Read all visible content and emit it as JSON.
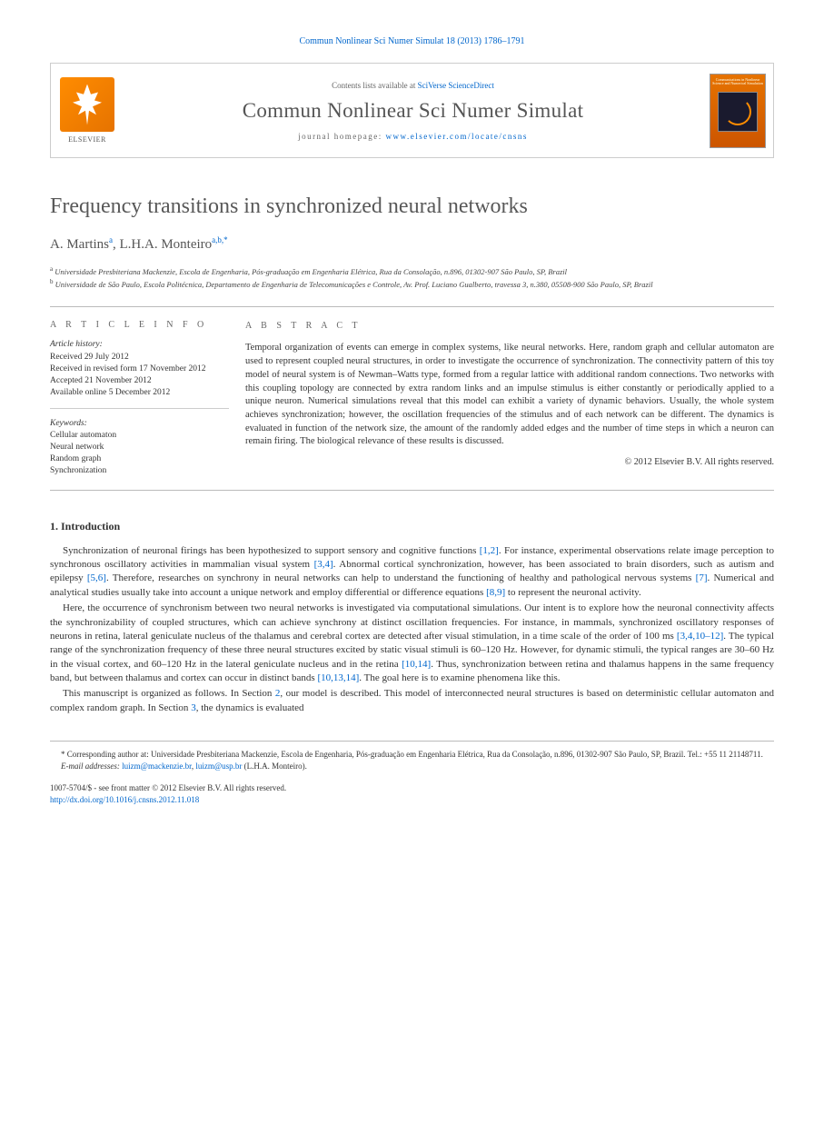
{
  "header": {
    "citation": "Commun Nonlinear Sci Numer Simulat 18 (2013) 1786–1791"
  },
  "masthead": {
    "contents_prefix": "Contents lists available at ",
    "contents_link": "SciVerse ScienceDirect",
    "elsevier": "ELSEVIER",
    "journal_name": "Commun Nonlinear Sci Numer Simulat",
    "homepage_prefix": "journal homepage: ",
    "homepage_link": "www.elsevier.com/locate/cnsns",
    "cover_title": "Communications in Nonlinear Science and Numerical Simulation"
  },
  "article": {
    "title": "Frequency transitions in synchronized neural networks",
    "authors_html": "A. Martins",
    "author1_sup": "a",
    "authors_sep": ", ",
    "author2": "L.H.A. Monteiro",
    "author2_sup": "a,b,*",
    "affiliations": [
      {
        "sup": "a",
        "text": "Universidade Presbiteriana Mackenzie, Escola de Engenharia, Pós-graduação em Engenharia Elétrica, Rua da Consolação, n.896, 01302-907 São Paulo, SP, Brazil"
      },
      {
        "sup": "b",
        "text": "Universidade de São Paulo, Escola Politécnica, Departamento de Engenharia de Telecomunicações e Controle, Av. Prof. Luciano Gualberto, travessa 3, n.380, 05508-900 São Paulo, SP, Brazil"
      }
    ]
  },
  "info": {
    "heading": "A R T I C L E   I N F O",
    "history_label": "Article history:",
    "history": [
      "Received 29 July 2012",
      "Received in revised form 17 November 2012",
      "Accepted 21 November 2012",
      "Available online 5 December 2012"
    ],
    "keywords_label": "Keywords:",
    "keywords": [
      "Cellular automaton",
      "Neural network",
      "Random graph",
      "Synchronization"
    ]
  },
  "abstract": {
    "heading": "A B S T R A C T",
    "text": "Temporal organization of events can emerge in complex systems, like neural networks. Here, random graph and cellular automaton are used to represent coupled neural structures, in order to investigate the occurrence of synchronization. The connectivity pattern of this toy model of neural system is of Newman–Watts type, formed from a regular lattice with additional random connections. Two networks with this coupling topology are connected by extra random links and an impulse stimulus is either constantly or periodically applied to a unique neuron. Numerical simulations reveal that this model can exhibit a variety of dynamic behaviors. Usually, the whole system achieves synchronization; however, the oscillation frequencies of the stimulus and of each network can be different. The dynamics is evaluated in function of the network size, the amount of the randomly added edges and the number of time steps in which a neuron can remain firing. The biological relevance of these results is discussed.",
    "copyright": "© 2012 Elsevier B.V. All rights reserved."
  },
  "sections": {
    "intro_heading": "1. Introduction",
    "intro_paragraphs": [
      "Synchronization of neuronal firings has been hypothesized to support sensory and cognitive functions [1,2]. For instance, experimental observations relate image perception to synchronous oscillatory activities in mammalian visual system [3,4]. Abnormal cortical synchronization, however, has been associated to brain disorders, such as autism and epilepsy [5,6]. Therefore, researches on synchrony in neural networks can help to understand the functioning of healthy and pathological nervous systems [7]. Numerical and analytical studies usually take into account a unique network and employ differential or difference equations [8,9] to represent the neuronal activity.",
      "Here, the occurrence of synchronism between two neural networks is investigated via computational simulations. Our intent is to explore how the neuronal connectivity affects the synchronizability of coupled structures, which can achieve synchrony at distinct oscillation frequencies. For instance, in mammals, synchronized oscillatory responses of neurons in retina, lateral geniculate nucleus of the thalamus and cerebral cortex are detected after visual stimulation, in a time scale of the order of 100 ms [3,4,10–12]. The typical range of the synchronization frequency of these three neural structures excited by static visual stimuli is 60–120 Hz. However, for dynamic stimuli, the typical ranges are 30–60 Hz in the visual cortex, and 60–120 Hz in the lateral geniculate nucleus and in the retina [10,14]. Thus, synchronization between retina and thalamus happens in the same frequency band, but between thalamus and cortex can occur in distinct bands [10,13,14]. The goal here is to examine phenomena like this.",
      "This manuscript is organized as follows. In Section 2, our model is described. This model of interconnected neural structures is based on deterministic cellular automaton and complex random graph. In Section 3, the dynamics is evaluated"
    ]
  },
  "footer": {
    "corr_label": "* Corresponding author at: Universidade Presbiteriana Mackenzie, Escola de Engenharia, Pós-graduação em Engenharia Elétrica, Rua da Consolação, n.896, 01302-907 São Paulo, SP, Brazil. Tel.: +55 11 21148711.",
    "email_label": "E-mail addresses: ",
    "email1": "luizm@mackenzie.br",
    "email_sep": ", ",
    "email2": "luizm@usp.br",
    "email_author": " (L.H.A. Monteiro).",
    "issn_line": "1007-5704/$ - see front matter © 2012 Elsevier B.V. All rights reserved.",
    "doi": "http://dx.doi.org/10.1016/j.cnsns.2012.11.018"
  }
}
